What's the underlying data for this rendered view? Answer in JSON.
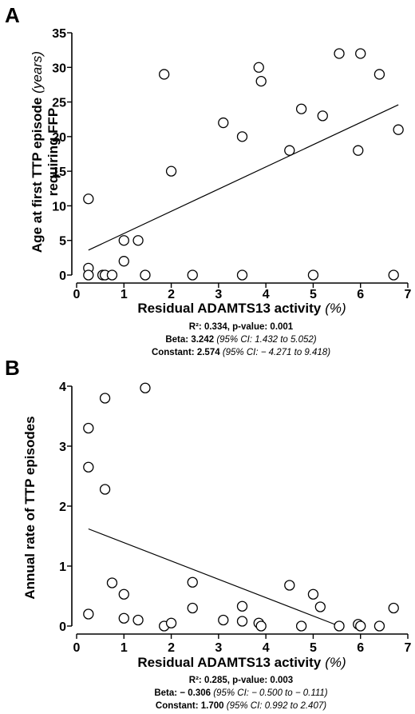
{
  "chart_data": [
    {
      "type": "scatter",
      "panel": "A",
      "xlabel": "Residual ADAMTS13 activity",
      "xlabel_unit": "(%)",
      "ylabel_line1": "Age at first TTP episode",
      "ylabel_unit": "(years)",
      "ylabel_line2": "requiring FFP",
      "xlim": [
        0,
        7
      ],
      "ylim": [
        0,
        35
      ],
      "xticks": [
        0,
        1,
        2,
        3,
        4,
        5,
        6,
        7
      ],
      "yticks": [
        0,
        5,
        10,
        15,
        20,
        25,
        30,
        35
      ],
      "grid": false,
      "x": [
        0.25,
        0.25,
        0.25,
        0.55,
        0.6,
        0.75,
        1.0,
        1.0,
        1.3,
        1.45,
        1.85,
        2.0,
        2.45,
        3.1,
        3.5,
        3.5,
        3.85,
        3.9,
        4.5,
        4.75,
        5.0,
        5.2,
        5.55,
        5.95,
        6.0,
        6.4,
        6.7,
        6.8
      ],
      "y": [
        11,
        1,
        0,
        0,
        0,
        0,
        5,
        2,
        5,
        0,
        29,
        15,
        0,
        22,
        20,
        0,
        30,
        28,
        18,
        24,
        0,
        23,
        32,
        18,
        32,
        29,
        0,
        21
      ],
      "regression_line": {
        "x": [
          0.25,
          6.8
        ],
        "y": [
          3.6,
          24.6
        ]
      },
      "stats": {
        "r2_label": "R²:",
        "r2_text": "0.334, p-value: 0.001",
        "beta_label": "Beta:",
        "beta_value": "3.242",
        "beta_ci": "(95% CI: 1.432 to 5.052)",
        "const_label": "Constant:",
        "const_value": "2.574",
        "const_ci": "(95% CI: − 4.271 to 9.418)"
      }
    },
    {
      "type": "scatter",
      "panel": "B",
      "xlabel": "Residual ADAMTS13 activity",
      "xlabel_unit": "(%)",
      "ylabel_line1": "Annual rate of TTP episodes",
      "xlim": [
        0,
        7
      ],
      "ylim": [
        0,
        4
      ],
      "xticks": [
        0,
        1,
        2,
        3,
        4,
        5,
        6,
        7
      ],
      "yticks": [
        0,
        1,
        2,
        3,
        4
      ],
      "grid": false,
      "x": [
        0.25,
        0.25,
        0.25,
        0.6,
        0.6,
        0.75,
        1.0,
        1.0,
        1.3,
        1.45,
        1.85,
        2.0,
        2.45,
        2.45,
        3.1,
        3.5,
        3.5,
        3.85,
        3.9,
        4.5,
        4.75,
        5.0,
        5.15,
        5.55,
        5.95,
        6.0,
        6.4,
        6.7
      ],
      "y": [
        3.3,
        2.65,
        0.2,
        3.8,
        2.28,
        0.72,
        0.53,
        0.13,
        0.1,
        3.97,
        0.0,
        0.05,
        0.73,
        0.3,
        0.1,
        0.33,
        0.08,
        0.05,
        0.0,
        0.68,
        0.0,
        0.53,
        0.32,
        0.0,
        0.03,
        0.0,
        0.0,
        0.3
      ],
      "regression_line": {
        "x": [
          0.25,
          5.55
        ],
        "y": [
          1.62,
          0.0
        ]
      },
      "stats": {
        "r2_label": "R²:",
        "r2_text": "0.285, p-value: 0.003",
        "beta_label": "Beta:",
        "beta_value": "− 0.306",
        "beta_ci": "(95% CI: − 0.500 to − 0.111)",
        "const_label": "Constant:",
        "const_value": "1.700",
        "const_ci": "(95% CI: 0.992 to 2.407)"
      }
    }
  ]
}
